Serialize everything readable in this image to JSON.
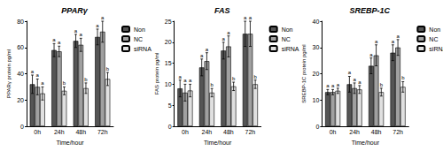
{
  "chart_data": [
    {
      "type": "bar",
      "title": "PPARγ",
      "x_label": "Time/hour",
      "y_label": "PPARγ protein pg/ml",
      "categories": [
        "0h",
        "24h",
        "48h",
        "72h"
      ],
      "series": [
        {
          "name": "Non",
          "color": "#555555",
          "values": [
            32,
            58,
            65,
            68
          ],
          "errors": [
            7,
            5,
            5,
            6
          ],
          "letters": [
            "a",
            "a",
            "a",
            "a"
          ]
        },
        {
          "name": "NC",
          "color": "#a0a0a0",
          "values": [
            30,
            57,
            62,
            72
          ],
          "errors": [
            6,
            4,
            5,
            8
          ],
          "letters": [
            "a",
            "a",
            "a",
            "a"
          ]
        },
        {
          "name": "siRNA",
          "color": "#e0e0e0",
          "values": [
            25,
            27,
            29,
            36
          ],
          "errors": [
            5,
            3,
            4,
            5
          ],
          "letters": [
            "a",
            "b",
            "b",
            "b"
          ]
        }
      ],
      "ylim": [
        0,
        80
      ],
      "yticks": [
        0,
        20,
        40,
        60,
        80
      ],
      "legend": "right"
    },
    {
      "type": "bar",
      "title": "FAS",
      "x_label": "Time/hour",
      "y_label": "FAS protein pg/ml",
      "categories": [
        "0h",
        "24h",
        "48h",
        "72h"
      ],
      "series": [
        {
          "name": "Non",
          "color": "#555555",
          "values": [
            9,
            14,
            18,
            22
          ],
          "errors": [
            2,
            2,
            2,
            3
          ],
          "letters": [
            "a",
            "a",
            "a",
            "a"
          ]
        },
        {
          "name": "NC",
          "color": "#a0a0a0",
          "values": [
            8,
            15.5,
            19,
            22
          ],
          "errors": [
            2,
            2,
            2.5,
            3
          ],
          "letters": [
            "a",
            "a",
            "a",
            "a"
          ]
        },
        {
          "name": "siRNA",
          "color": "#e0e0e0",
          "values": [
            8.5,
            8,
            9.5,
            10
          ],
          "errors": [
            1.5,
            1,
            1,
            1
          ],
          "letters": [
            "a",
            "b",
            "b",
            "b"
          ]
        }
      ],
      "ylim": [
        0,
        25
      ],
      "yticks": [
        0,
        5,
        10,
        15,
        20,
        25
      ],
      "legend": "right"
    },
    {
      "type": "bar",
      "title": "SREBP-1C",
      "x_label": "Time/hour",
      "y_label": "SREBP-1C protein pg/ml",
      "categories": [
        "0h",
        "24h",
        "48h",
        "72h"
      ],
      "series": [
        {
          "name": "Non",
          "color": "#555555",
          "values": [
            13,
            16,
            23,
            28
          ],
          "errors": [
            1,
            3,
            3,
            3
          ],
          "letters": [
            "a",
            "a",
            "a",
            "a"
          ]
        },
        {
          "name": "NC",
          "color": "#a0a0a0",
          "values": [
            13,
            14.5,
            27,
            30
          ],
          "errors": [
            1,
            2,
            4,
            3
          ],
          "letters": [
            "a",
            "a",
            "a",
            "a"
          ]
        },
        {
          "name": "siRNA",
          "color": "#e0e0e0",
          "values": [
            13.5,
            14,
            13,
            15
          ],
          "errors": [
            1,
            1.5,
            1.5,
            2
          ],
          "letters": [
            "a",
            "a",
            "b",
            "b"
          ]
        }
      ],
      "ylim": [
        0,
        40
      ],
      "yticks": [
        0,
        10,
        20,
        30,
        40
      ],
      "legend": "right"
    }
  ]
}
